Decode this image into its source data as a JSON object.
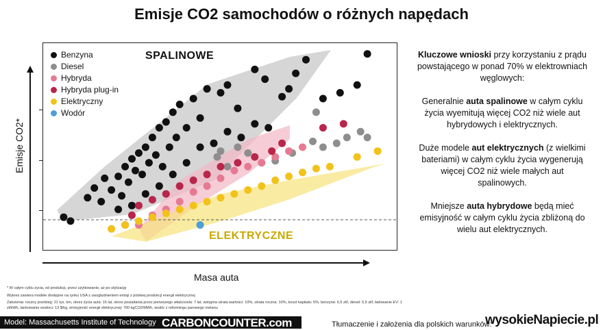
{
  "title": "Emisje CO2 samochodów o różnych napędach",
  "chart_data": {
    "type": "scatter",
    "title": "Emisje CO2 samochodów o różnych napędach",
    "xlabel": "Masa auta",
    "ylabel": "Emisje CO2*",
    "annotations": [
      "SPALINOWE",
      "ELEKTRYCZNE"
    ],
    "legend_position": "top-left",
    "grid": false,
    "series": [
      {
        "name": "Benzyna",
        "color": "#111111",
        "points": [
          [
            0.04,
            0.14
          ],
          [
            0.06,
            0.12
          ],
          [
            0.11,
            0.24
          ],
          [
            0.13,
            0.29
          ],
          [
            0.15,
            0.22
          ],
          [
            0.16,
            0.34
          ],
          [
            0.18,
            0.28
          ],
          [
            0.2,
            0.35
          ],
          [
            0.21,
            0.25
          ],
          [
            0.22,
            0.4
          ],
          [
            0.23,
            0.32
          ],
          [
            0.24,
            0.44
          ],
          [
            0.25,
            0.38
          ],
          [
            0.26,
            0.47
          ],
          [
            0.27,
            0.36
          ],
          [
            0.28,
            0.5
          ],
          [
            0.29,
            0.42
          ],
          [
            0.3,
            0.55
          ],
          [
            0.31,
            0.46
          ],
          [
            0.32,
            0.6
          ],
          [
            0.33,
            0.4
          ],
          [
            0.34,
            0.63
          ],
          [
            0.35,
            0.5
          ],
          [
            0.36,
            0.68
          ],
          [
            0.37,
            0.55
          ],
          [
            0.38,
            0.72
          ],
          [
            0.4,
            0.6
          ],
          [
            0.42,
            0.75
          ],
          [
            0.44,
            0.65
          ],
          [
            0.46,
            0.8
          ],
          [
            0.5,
            0.78
          ],
          [
            0.52,
            0.82
          ],
          [
            0.55,
            0.7
          ],
          [
            0.6,
            0.9
          ],
          [
            0.63,
            0.85
          ],
          [
            0.68,
            0.76
          ],
          [
            0.7,
            0.8
          ],
          [
            0.72,
            0.88
          ],
          [
            0.75,
            0.95
          ],
          [
            0.8,
            0.75
          ],
          [
            0.85,
            0.78
          ],
          [
            0.9,
            0.82
          ],
          [
            0.93,
            0.98
          ],
          [
            0.2,
            0.18
          ],
          [
            0.24,
            0.2
          ],
          [
            0.28,
            0.26
          ],
          [
            0.32,
            0.3
          ],
          [
            0.36,
            0.36
          ],
          [
            0.4,
            0.42
          ],
          [
            0.44,
            0.5
          ],
          [
            0.48,
            0.52
          ],
          [
            0.52,
            0.58
          ],
          [
            0.56,
            0.55
          ],
          [
            0.6,
            0.62
          ],
          [
            0.64,
            0.6
          ]
        ]
      },
      {
        "name": "Diesel",
        "color": "#8e8e8e",
        "points": [
          [
            0.49,
            0.45
          ],
          [
            0.5,
            0.48
          ],
          [
            0.52,
            0.4
          ],
          [
            0.55,
            0.5
          ],
          [
            0.58,
            0.47
          ],
          [
            0.62,
            0.42
          ],
          [
            0.66,
            0.43
          ],
          [
            0.71,
            0.47
          ],
          [
            0.77,
            0.53
          ],
          [
            0.8,
            0.5
          ],
          [
            0.84,
            0.52
          ],
          [
            0.87,
            0.55
          ],
          [
            0.91,
            0.58
          ],
          [
            0.93,
            0.55
          ],
          [
            0.78,
            0.68
          ]
        ]
      },
      {
        "name": "Hybryda",
        "color": "#e77a93",
        "points": [
          [
            0.26,
            0.1
          ],
          [
            0.3,
            0.15
          ],
          [
            0.34,
            0.18
          ],
          [
            0.38,
            0.22
          ],
          [
            0.42,
            0.27
          ],
          [
            0.46,
            0.3
          ],
          [
            0.5,
            0.34
          ],
          [
            0.54,
            0.38
          ],
          [
            0.58,
            0.4
          ],
          [
            0.62,
            0.42
          ],
          [
            0.66,
            0.45
          ],
          [
            0.7,
            0.48
          ],
          [
            0.74,
            0.5
          ]
        ]
      },
      {
        "name": "Hybryda plug-in",
        "color": "#b8264a",
        "points": [
          [
            0.22,
            0.1
          ],
          [
            0.24,
            0.15
          ],
          [
            0.26,
            0.2
          ],
          [
            0.3,
            0.23
          ],
          [
            0.34,
            0.26
          ],
          [
            0.38,
            0.3
          ],
          [
            0.42,
            0.33
          ],
          [
            0.46,
            0.36
          ],
          [
            0.5,
            0.4
          ],
          [
            0.55,
            0.42
          ],
          [
            0.6,
            0.45
          ],
          [
            0.65,
            0.48
          ],
          [
            0.68,
            0.52
          ],
          [
            0.8,
            0.6
          ],
          [
            0.86,
            0.62
          ]
        ]
      },
      {
        "name": "Elektryczny",
        "color": "#f2c21b",
        "points": [
          [
            0.18,
            0.08
          ],
          [
            0.22,
            0.1
          ],
          [
            0.26,
            0.12
          ],
          [
            0.3,
            0.14
          ],
          [
            0.34,
            0.16
          ],
          [
            0.38,
            0.18
          ],
          [
            0.42,
            0.2
          ],
          [
            0.46,
            0.22
          ],
          [
            0.5,
            0.24
          ],
          [
            0.54,
            0.26
          ],
          [
            0.58,
            0.28
          ],
          [
            0.62,
            0.3
          ],
          [
            0.66,
            0.33
          ],
          [
            0.7,
            0.35
          ],
          [
            0.74,
            0.37
          ],
          [
            0.78,
            0.39
          ],
          [
            0.82,
            0.4
          ],
          [
            0.9,
            0.45
          ],
          [
            0.96,
            0.48
          ]
        ]
      },
      {
        "name": "Wodór",
        "color": "#4f9fd6",
        "points": [
          [
            0.44,
            0.1
          ]
        ]
      }
    ]
  },
  "legend": [
    {
      "label": "Benzyna",
      "color": "#111111"
    },
    {
      "label": "Diesel",
      "color": "#8e8e8e"
    },
    {
      "label": "Hybryda",
      "color": "#e77a93"
    },
    {
      "label": "Hybryda plug-in",
      "color": "#b8264a"
    },
    {
      "label": "Elektryczny",
      "color": "#f2c21b"
    },
    {
      "label": "Wodór",
      "color": "#4f9fd6"
    }
  ],
  "notes": {
    "n1": "* W całym cyklu życia, od produkcji, przez użytkowanie, aż po utylizację",
    "n2": "Wykres zawiera modele dostępne na rynku USA z uwzględnieniem emisji z polskiej produkcji energii elektrycznej",
    "n3": "Założenia: roczny przebieg: 21 tys. km, okres życia auta: 15 lat, okres posiadania przez pierwszego właściciela: 7 lat, wstępna utrata wartości: 10%, utrata roczna: 10%, koszt kapitału: 5%, benzyna: 6,5 zł/l, diesel: 5,5 zł/l, ładowanie EV: 1 zł/kWh, tankowanie wodoru: 13 $/kg, emisyjność energii elektrycznej: 700 kgCO2/MWh, wodór z reformingu parowego metanu"
  },
  "right": {
    "p1_bold": "Kluczowe wnioski",
    "p1_rest": " przy korzystaniu z prądu powstającego w ponad 70% w elektrowniach węglowych:",
    "p2_a": "Generalnie ",
    "p2_bold": "auta spalinowe",
    "p2_b": " w całym cyklu życia wyemitują więcej CO2 niż wiele aut hybrydowych i elektrycznych.",
    "p3_a": "Duże modele ",
    "p3_bold": "aut elektrycznych",
    "p3_b": " (z wielkimi bateriami) w całym cyklu życia wygenerują więcej CO2 niż wiele małych aut spalinowych.",
    "p4_a": "Mniejsze ",
    "p4_bold": "auta hybrydowe",
    "p4_b": " będą mieć emisyjność w całym cyklu życia zbliżoną do wielu aut elektrycznych."
  },
  "footer": {
    "model": "Model: Massachusetts Institute of Technology",
    "brand": "CARBONCOUNTER.com",
    "translation": "Tłumaczenie i założenia dla polskich warunków:",
    "logo": "wysokieNapiecie.pl"
  }
}
